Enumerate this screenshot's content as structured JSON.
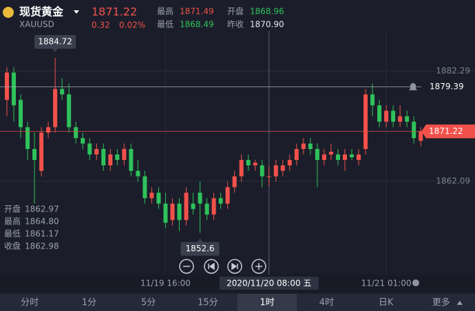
{
  "header": {
    "name": "现货黄金",
    "symbol": "XAUUSD",
    "price": "1871.22",
    "change": "0.32",
    "change_pct": "0.02%",
    "stats": [
      {
        "label": "最高",
        "value": "1871.49",
        "color": "#f2514b"
      },
      {
        "label": "开盘",
        "value": "1868.96",
        "color": "#2fc25b"
      },
      {
        "label": "最低",
        "value": "1868.49",
        "color": "#2fc25b"
      },
      {
        "label": "昨收",
        "value": "1870.90",
        "color": "#e6e8ee"
      }
    ]
  },
  "crosshair": {
    "index": 38,
    "rows": [
      {
        "label": "开盘",
        "value": "1862.97"
      },
      {
        "label": "最高",
        "value": "1864.80"
      },
      {
        "label": "最低",
        "value": "1861.17"
      },
      {
        "label": "收盘",
        "value": "1862.98"
      }
    ]
  },
  "tabs": [
    "分时",
    "1分",
    "5分",
    "15分",
    "1时",
    "4时",
    "日K",
    "更多"
  ],
  "selected_tab": 4,
  "chart_data": {
    "type": "candlestick",
    "up_color": "#f2514b",
    "down_color": "#2fc25b",
    "categories": [
      null,
      null,
      null,
      null,
      null,
      null,
      null,
      null,
      null,
      null,
      null,
      null,
      null,
      null,
      null,
      null,
      null,
      null,
      null,
      null,
      null,
      null,
      null,
      "11/19 16:00",
      null,
      null,
      null,
      null,
      null,
      null,
      null,
      null,
      null,
      null,
      null,
      null,
      null,
      null,
      "2020/11/20 08:00 五",
      null,
      null,
      null,
      null,
      null,
      null,
      null,
      null,
      null,
      null,
      null,
      null,
      null,
      null,
      null,
      null,
      "11/21 01:00",
      null,
      null,
      null,
      null,
      null
    ],
    "open": [
      1877,
      1882,
      1877,
      1872,
      1868,
      1864,
      1871,
      1872,
      1879,
      1878,
      1872,
      1870,
      1869,
      1867,
      1868,
      1865,
      1867,
      1866,
      1868,
      1864,
      1863,
      1859,
      1860,
      1858,
      1855,
      1858,
      1855,
      1858,
      1860,
      1858,
      1856,
      1859,
      1858,
      1861,
      1863,
      1866,
      1865,
      1865,
      1862.97,
      1863,
      1864,
      1865,
      1866,
      1868,
      1869,
      1868,
      1866,
      1867,
      1867,
      1866,
      1867,
      1866,
      1868,
      1878,
      1876,
      1873,
      1875,
      1873,
      1874,
      1873,
      1869.5
    ],
    "high": [
      1883,
      1883,
      1878,
      1873,
      1871,
      1872,
      1873,
      1884.72,
      1881,
      1880,
      1873,
      1871,
      1870,
      1869,
      1869,
      1868,
      1868,
      1869,
      1869,
      1866,
      1864,
      1861,
      1861,
      1860,
      1859,
      1859,
      1861,
      1860,
      1862,
      1859,
      1860,
      1860,
      1862,
      1864,
      1867,
      1867,
      1866,
      1866,
      1864.8,
      1866,
      1866,
      1867,
      1869,
      1870,
      1870,
      1869,
      1868,
      1869,
      1868,
      1868,
      1868,
      1868,
      1879,
      1880,
      1877,
      1876,
      1876,
      1876,
      1875,
      1874,
      1872
    ],
    "low": [
      1874,
      1873,
      1870,
      1866,
      1858,
      1863,
      1870,
      1871,
      1877,
      1871,
      1869,
      1868,
      1866,
      1866,
      1864,
      1864,
      1865,
      1865,
      1863,
      1862,
      1858,
      1858,
      1857,
      1853.5,
      1854,
      1853,
      1854,
      1856,
      1852.6,
      1855,
      1855,
      1857,
      1857,
      1860,
      1862,
      1864,
      1864,
      1861,
      1861.17,
      1862,
      1863,
      1864,
      1865,
      1867,
      1867,
      1861,
      1865,
      1866,
      1865,
      1864,
      1866,
      1865,
      1867,
      1874,
      1872,
      1872,
      1872,
      1872,
      1872,
      1869,
      1868.5
    ],
    "close": [
      1882,
      1876,
      1872,
      1868,
      1866,
      1871,
      1872,
      1879,
      1878,
      1872,
      1870,
      1869,
      1867,
      1868,
      1865,
      1867,
      1866,
      1868,
      1864,
      1863,
      1859,
      1860,
      1858,
      1854.5,
      1858,
      1855,
      1860,
      1857,
      1858,
      1856,
      1859,
      1858,
      1861,
      1863,
      1866,
      1865,
      1865.5,
      1863,
      1862.98,
      1865,
      1865,
      1866,
      1868,
      1869,
      1868,
      1866,
      1867,
      1867.5,
      1866,
      1867,
      1866.5,
      1867,
      1878,
      1876,
      1873,
      1875,
      1873,
      1874,
      1873,
      1870,
      1871.22
    ],
    "ylim": [
      1845,
      1889
    ],
    "yticks": [
      1882.29,
      1862.09
    ],
    "reference_lines": [
      {
        "value": 1879.39,
        "color": "#aeb3c2"
      },
      {
        "value": 1871.22,
        "color": "#f2514b"
      }
    ]
  }
}
